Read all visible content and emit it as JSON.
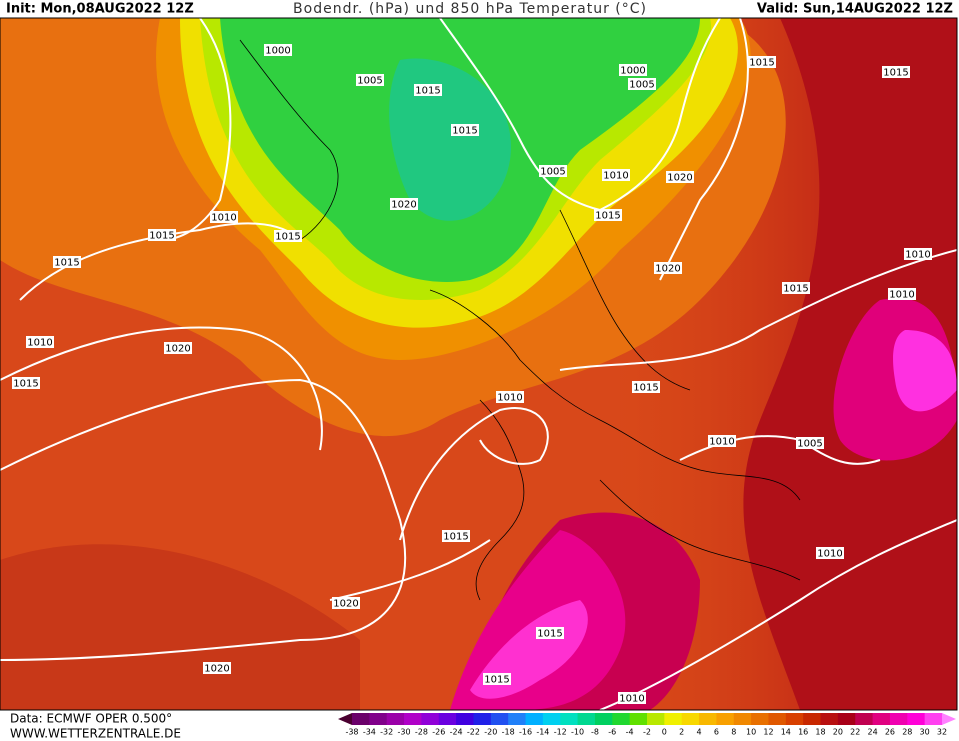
{
  "header": {
    "init": "Init: Mon,08AUG2022 12Z",
    "title": "Bodendr. (hPa) und 850 hPa Temperatur (°C)",
    "valid": "Valid: Sun,14AUG2022 12Z"
  },
  "footer": {
    "data": "Data: ECMWF OPER 0.500°",
    "website": "WWW.WETTERZENTRALE.DE"
  },
  "colorbar": {
    "labels": [
      "-38",
      "-34",
      "-32",
      "-30",
      "-28",
      "-26",
      "-24",
      "-22",
      "-20",
      "-18",
      "-16",
      "-14",
      "-12",
      "-10",
      "-8",
      "-6",
      "-4",
      "-2",
      "0",
      "2",
      "4",
      "6",
      "8",
      "10",
      "12",
      "14",
      "16",
      "18",
      "20",
      "22",
      "24",
      "26",
      "28",
      "30",
      "32"
    ],
    "colors": [
      "#4a0030",
      "#6a006a",
      "#80008a",
      "#9a00a8",
      "#b000c8",
      "#9000d8",
      "#6a00e0",
      "#4000e0",
      "#2020e8",
      "#2050f0",
      "#2080f8",
      "#00b0ff",
      "#00d0f0",
      "#00e0c0",
      "#00d890",
      "#00d060",
      "#20d830",
      "#60e000",
      "#b8e800",
      "#f0f000",
      "#f8d800",
      "#f8b800",
      "#f8a000",
      "#f08800",
      "#e87000",
      "#e05800",
      "#d84000",
      "#c82800",
      "#b81010",
      "#a80018",
      "#c00050",
      "#e00080",
      "#f000b0",
      "#ff00d8",
      "#ff40f0",
      "#ff80ff"
    ]
  },
  "isobar_labels": [
    "1000",
    "1005",
    "1015",
    "1015",
    "1000",
    "1005",
    "1015",
    "1015",
    "1005",
    "1010",
    "1020",
    "1020",
    "1015",
    "1010",
    "1015",
    "1015",
    "1015",
    "1020",
    "1010",
    "1015",
    "1010",
    "1010",
    "1020",
    "1015",
    "1015",
    "1010",
    "1010",
    "1005",
    "1015",
    "1010",
    "1020",
    "1015",
    "1015",
    "1020",
    "1010"
  ]
}
